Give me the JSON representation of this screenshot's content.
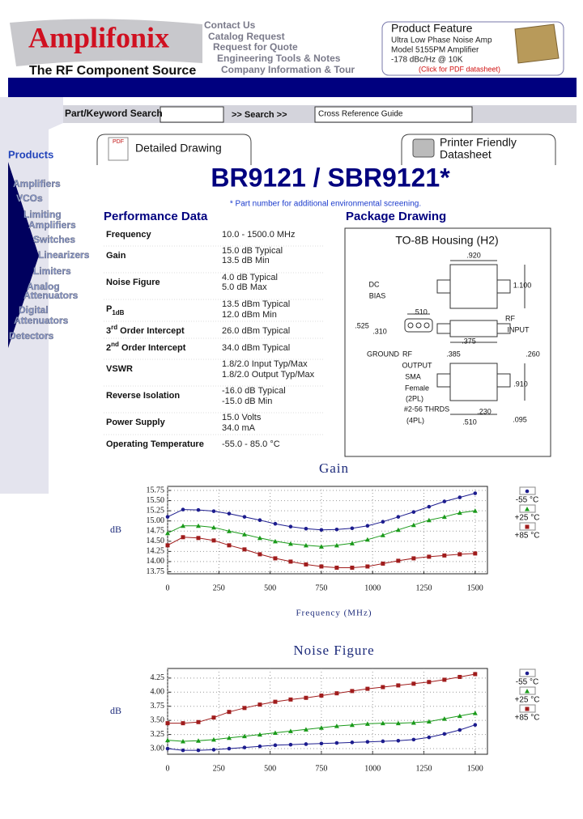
{
  "header": {
    "logo": "Amplifonix",
    "tagline": "The RF Component Source",
    "nav": [
      "Contact Us",
      "Catalog Request",
      "Request for Quote",
      "Engineering Tools & Notes",
      "Company Information & Tour"
    ]
  },
  "product_feature": {
    "title": "Product Feature",
    "lines": [
      "Ultra Low Phase Noise Amp",
      "Model 5155PM Amplifier",
      "-178 dBc/Hz @ 10K"
    ],
    "link": "(Click for PDF datasheet)"
  },
  "search": {
    "label": "Part/Keyword Search",
    "button": ">> Search >>",
    "cross_reference": "Cross Reference Guide"
  },
  "sidebar": {
    "title": "Products",
    "items": [
      [
        "Amplifiers"
      ],
      [
        "VCOs"
      ],
      [
        "Limiting",
        "Amplifiers"
      ],
      [
        "Switches"
      ],
      [
        "Linearizers"
      ],
      [
        "Limiters"
      ],
      [
        "Analog",
        "Attenuators"
      ],
      [
        "Digital",
        "Attenuators"
      ],
      [
        "Detectors"
      ]
    ]
  },
  "buttons": {
    "pdf_icon": "PDF",
    "detailed_drawing": "Detailed Drawing",
    "printer_friendly": [
      "Printer Friendly",
      "Datasheet"
    ]
  },
  "part": {
    "title": "BR9121 / SBR9121*",
    "note": "* Part number for additional environmental screening."
  },
  "performance": {
    "title": "Performance Data",
    "rows": [
      {
        "parameter": [
          {
            "text": "Frequency"
          }
        ],
        "values": [
          "10.0 - 1500.0 MHz"
        ]
      },
      {
        "parameter": [
          {
            "text": "Gain"
          }
        ],
        "values": [
          "15.0 dB Typical",
          "13.5 dB Min"
        ]
      },
      {
        "parameter": [
          {
            "text": "Noise Figure"
          }
        ],
        "values": [
          "4.0 dB Typical",
          "5.0 dB Max"
        ]
      },
      {
        "parameter": [
          {
            "text": "P"
          },
          {
            "text": "1dB",
            "style": "sub"
          }
        ],
        "values": [
          "13.5 dBm Typical",
          "12.0 dBm Min"
        ]
      },
      {
        "parameter": [
          {
            "text": "3"
          },
          {
            "text": "rd",
            "style": "sup"
          },
          {
            "text": " Order Intercept"
          }
        ],
        "values": [
          "26.0 dBm Typical"
        ]
      },
      {
        "parameter": [
          {
            "text": "2"
          },
          {
            "text": "nd",
            "style": "sup"
          },
          {
            "text": " Order Intercept"
          }
        ],
        "values": [
          "34.0 dBm Typical"
        ]
      },
      {
        "parameter": [
          {
            "text": "VSWR"
          }
        ],
        "values": [
          "1.8/2.0 Input Typ/Max",
          "1.8/2.0 Output Typ/Max"
        ]
      },
      {
        "parameter": [
          {
            "text": "Reverse Isolation"
          }
        ],
        "values": [
          "-16.0 dB Typical",
          "-15.0 dB Min"
        ]
      },
      {
        "parameter": [
          {
            "text": "Power Supply"
          }
        ],
        "values": [
          "15.0 Volts",
          "34.0 mA"
        ]
      },
      {
        "parameter": [
          {
            "text": "Operating Temperature"
          }
        ],
        "values": [
          "-55.0 - 85.0 °C"
        ]
      }
    ]
  },
  "package": {
    "title": "Package Drawing",
    "housing": "TO-8B Housing (H2)",
    "labels": [
      ".920",
      "1.100",
      "DC",
      "BIAS",
      ".510",
      ".525",
      ".310",
      "RF",
      "INPUT",
      "GROUND",
      "RF",
      ".375",
      ".385",
      ".260",
      "OUTPUT",
      "SMA",
      "Female",
      "(2PL)",
      ".910",
      "#2-56 THRDS",
      "(4PL)",
      ".230",
      ".510",
      ".095"
    ]
  },
  "chart_data": [
    {
      "type": "line",
      "title": "Gain",
      "x_label": "Frequency (MHz)",
      "y_label": "dB",
      "x": [
        0,
        75,
        150,
        225,
        300,
        375,
        450,
        525,
        600,
        675,
        750,
        825,
        900,
        975,
        1050,
        1125,
        1200,
        1275,
        1350,
        1425,
        1500
      ],
      "xlim": [
        0,
        1560
      ],
      "xticks": [
        0,
        250,
        500,
        750,
        1000,
        1250,
        1500
      ],
      "ylim": [
        13.7,
        15.85
      ],
      "yticks": [
        13.75,
        {
          "value": 14,
          "label": "14.00"
        },
        14.25,
        {
          "value": 14.5,
          "label": "14.50"
        },
        14.75,
        {
          "value": 15,
          "label": "15.00"
        },
        15.25,
        {
          "value": 15.5,
          "label": "15.50"
        },
        15.75
      ],
      "grid": true,
      "series": [
        {
          "name": "-55 °C",
          "color": "#1c1c8e",
          "marker": "circle",
          "values": [
            15.1,
            15.28,
            15.27,
            15.24,
            15.18,
            15.1,
            15.02,
            14.93,
            14.86,
            14.81,
            14.78,
            14.79,
            14.82,
            14.88,
            14.98,
            15.1,
            15.22,
            15.35,
            15.48,
            15.58,
            15.68
          ]
        },
        {
          "name": "+25 °C",
          "color": "#1a9a1a",
          "marker": "triangle",
          "values": [
            14.7,
            14.88,
            14.88,
            14.84,
            14.75,
            14.67,
            14.58,
            14.5,
            14.44,
            14.4,
            14.37,
            14.4,
            14.45,
            14.54,
            14.65,
            14.78,
            14.9,
            15.02,
            15.1,
            15.2,
            15.25
          ]
        },
        {
          "name": "+85 °C",
          "color": "#a01c1c",
          "marker": "square",
          "values": [
            14.4,
            14.6,
            14.58,
            14.52,
            14.4,
            14.3,
            14.18,
            14.08,
            14.0,
            13.93,
            13.88,
            13.85,
            13.85,
            13.88,
            13.95,
            14.02,
            14.08,
            14.12,
            14.15,
            14.18,
            14.2
          ]
        }
      ]
    },
    {
      "type": "line",
      "title": "Noise Figure",
      "y_label": "dB",
      "x": [
        0,
        75,
        150,
        225,
        300,
        375,
        450,
        525,
        600,
        675,
        750,
        825,
        900,
        975,
        1050,
        1125,
        1200,
        1275,
        1350,
        1425,
        1500
      ],
      "xlim": [
        0,
        1560
      ],
      "xticks": [
        0,
        250,
        500,
        750,
        1000,
        1250,
        1500
      ],
      "ylim": [
        2.9,
        4.42
      ],
      "yticks": [
        {
          "value": 3,
          "label": "3.00"
        },
        3.25,
        {
          "value": 3.5,
          "label": "3.50"
        },
        3.75,
        {
          "value": 4,
          "label": "4.00"
        },
        4.25
      ],
      "grid": true,
      "series": [
        {
          "name": "-55 °C",
          "color": "#1c1c8e",
          "marker": "circle",
          "values": [
            3.0,
            2.97,
            2.97,
            2.98,
            3.0,
            3.02,
            3.04,
            3.06,
            3.07,
            3.08,
            3.09,
            3.1,
            3.11,
            3.12,
            3.13,
            3.14,
            3.16,
            3.2,
            3.26,
            3.33,
            3.42
          ]
        },
        {
          "name": "+25 °C",
          "color": "#1a9a1a",
          "marker": "triangle",
          "values": [
            3.15,
            3.13,
            3.14,
            3.16,
            3.19,
            3.22,
            3.25,
            3.28,
            3.31,
            3.34,
            3.37,
            3.4,
            3.42,
            3.44,
            3.45,
            3.45,
            3.46,
            3.48,
            3.53,
            3.58,
            3.63
          ]
        },
        {
          "name": "+85 °C",
          "color": "#a01c1c",
          "marker": "square",
          "values": [
            3.45,
            3.45,
            3.47,
            3.55,
            3.65,
            3.72,
            3.78,
            3.83,
            3.87,
            3.9,
            3.94,
            3.98,
            4.02,
            4.06,
            4.09,
            4.12,
            4.15,
            4.18,
            4.22,
            4.27,
            4.32
          ]
        }
      ]
    }
  ]
}
